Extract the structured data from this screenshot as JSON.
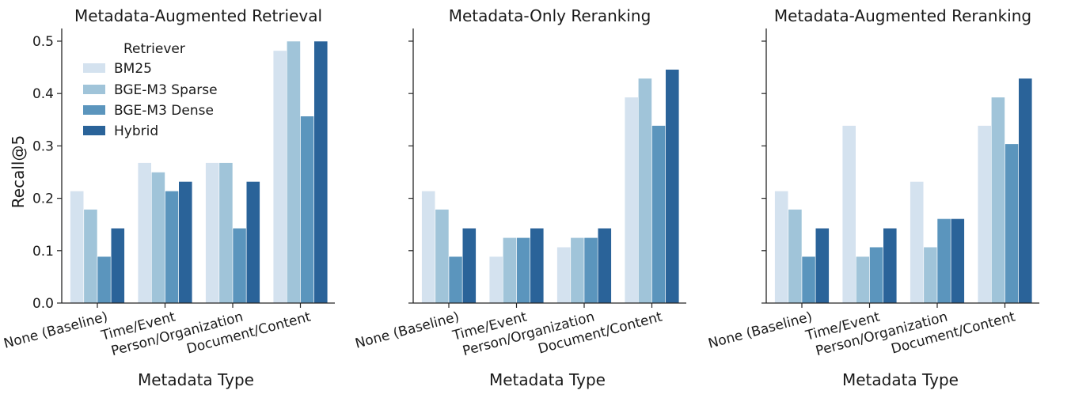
{
  "chart_data": [
    {
      "type": "bar",
      "title": "Metadata-Augmented Retrieval",
      "xlabel": "Metadata Type",
      "ylabel": "Recall@5",
      "ylim": [
        0,
        0.525
      ],
      "yticks": [
        "0.0",
        "0.1",
        "0.2",
        "0.3",
        "0.4",
        "0.5"
      ],
      "categories": [
        "None (Baseline)",
        "Time/Event",
        "Person/Organization",
        "Document/Content"
      ],
      "series": [
        {
          "name": "BM25",
          "values": [
            0.214,
            0.268,
            0.268,
            0.482
          ]
        },
        {
          "name": "BGE-M3 Sparse",
          "values": [
            0.179,
            0.25,
            0.268,
            0.5
          ]
        },
        {
          "name": "BGE-M3 Dense",
          "values": [
            0.089,
            0.214,
            0.143,
            0.357
          ]
        },
        {
          "name": "Hybrid",
          "values": [
            0.143,
            0.232,
            0.232,
            0.5
          ]
        }
      ],
      "legend": {
        "title": "Retriever",
        "position": "upper left"
      },
      "grid": false
    },
    {
      "type": "bar",
      "title": "Metadata-Only Reranking",
      "xlabel": "Metadata Type",
      "ylabel": "",
      "ylim": [
        0,
        0.525
      ],
      "categories": [
        "None (Baseline)",
        "Time/Event",
        "Person/Organization",
        "Document/Content"
      ],
      "series": [
        {
          "name": "BM25",
          "values": [
            0.214,
            0.089,
            0.107,
            0.393
          ]
        },
        {
          "name": "BGE-M3 Sparse",
          "values": [
            0.179,
            0.125,
            0.125,
            0.429
          ]
        },
        {
          "name": "BGE-M3 Dense",
          "values": [
            0.089,
            0.125,
            0.125,
            0.339
          ]
        },
        {
          "name": "Hybrid",
          "values": [
            0.143,
            0.143,
            0.143,
            0.446
          ]
        }
      ],
      "grid": false
    },
    {
      "type": "bar",
      "title": "Metadata-Augmented Reranking",
      "xlabel": "Metadata Type",
      "ylabel": "",
      "ylim": [
        0,
        0.525
      ],
      "categories": [
        "None (Baseline)",
        "Time/Event",
        "Person/Organization",
        "Document/Content"
      ],
      "series": [
        {
          "name": "BM25",
          "values": [
            0.214,
            0.339,
            0.232,
            0.339
          ]
        },
        {
          "name": "BGE-M3 Sparse",
          "values": [
            0.179,
            0.089,
            0.107,
            0.393
          ]
        },
        {
          "name": "BGE-M3 Dense",
          "values": [
            0.089,
            0.107,
            0.161,
            0.304
          ]
        },
        {
          "name": "Hybrid",
          "values": [
            0.143,
            0.143,
            0.161,
            0.429
          ]
        }
      ],
      "grid": false
    }
  ],
  "colors": {
    "BM25": "#d4e2ef",
    "BGE-M3 Sparse": "#a0c4d9",
    "BGE-M3 Dense": "#5b95bd",
    "Hybrid": "#2a6399",
    "axis": "#262626"
  },
  "legend": {
    "title": "Retriever",
    "items": [
      "BM25",
      "BGE-M3 Sparse",
      "BGE-M3 Dense",
      "Hybrid"
    ]
  }
}
